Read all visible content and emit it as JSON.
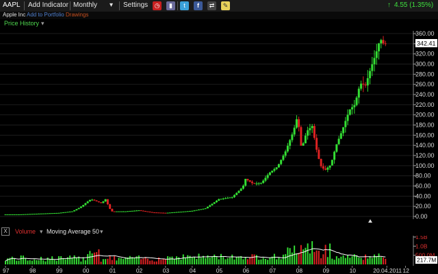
{
  "toolbar": {
    "symbol": "AAPL",
    "add_indicator": "Add Indicator",
    "interval": "Monthly",
    "interval_arrow": "▾",
    "settings": "Settings",
    "change": "4.55 (1.35%)",
    "change_arrow": "↑",
    "icons": [
      "alarm-clock-icon",
      "bookmark-icon",
      "twitter-icon",
      "facebook-icon",
      "compare-icon",
      "note-icon"
    ]
  },
  "subbar": {
    "company": "Apple Inc",
    "add_to_portfolio": "Add to Portfolio",
    "drawings": "Drawings"
  },
  "price_panel": {
    "title": "Price History",
    "title_arrow": "▾",
    "last_price": "342.41"
  },
  "volume_panel": {
    "close_label": "X",
    "title": "Volume",
    "title_arrow": "▾",
    "ma_label": "Moving Average 50",
    "ma_arrow": "▾",
    "last_volume": "217.7M"
  },
  "colors": {
    "up": "#33dd33",
    "down": "#dd2222",
    "ma": "#ffffff",
    "up_text": "#33dd33",
    "down_text": "#dd3333"
  },
  "chart_data": [
    {
      "type": "candlestick",
      "title": "Price History",
      "ylim": [
        0,
        360
      ],
      "y_ticks": [
        "360.00",
        "340.00",
        "320.00",
        "300.00",
        "280.00",
        "260.00",
        "240.00",
        "220.00",
        "200.00",
        "180.00",
        "160.00",
        "140.00",
        "120.00",
        "100.00",
        "80.00",
        "60.00",
        "40.00",
        "20.00",
        "0.00"
      ],
      "x_ticks": [
        "97",
        "98",
        "99",
        "00",
        "01",
        "02",
        "03",
        "04",
        "05",
        "06",
        "07",
        "08",
        "09",
        "10",
        "20.04.2011",
        "12"
      ],
      "x_range": [
        1997.0,
        2012.5
      ],
      "last_value": 342.41,
      "series": [
        {
          "t": 1997.0,
          "c": 4
        },
        {
          "t": 1997.5,
          "c": 4
        },
        {
          "t": 1998.0,
          "c": 5
        },
        {
          "t": 1998.5,
          "c": 6
        },
        {
          "t": 1999.0,
          "c": 7
        },
        {
          "t": 1999.5,
          "c": 10
        },
        {
          "t": 1999.8,
          "c": 18
        },
        {
          "t": 2000.0,
          "c": 26
        },
        {
          "t": 2000.2,
          "c": 34
        },
        {
          "t": 2000.4,
          "c": 30
        },
        {
          "t": 2000.6,
          "c": 26
        },
        {
          "t": 2000.75,
          "c": 34
        },
        {
          "t": 2000.9,
          "c": 16
        },
        {
          "t": 2001.0,
          "c": 10
        },
        {
          "t": 2001.5,
          "c": 10
        },
        {
          "t": 2002.0,
          "c": 12
        },
        {
          "t": 2002.5,
          "c": 8
        },
        {
          "t": 2003.0,
          "c": 7
        },
        {
          "t": 2003.5,
          "c": 9
        },
        {
          "t": 2004.0,
          "c": 11
        },
        {
          "t": 2004.5,
          "c": 16
        },
        {
          "t": 2005.0,
          "c": 34
        },
        {
          "t": 2005.5,
          "c": 38
        },
        {
          "t": 2005.9,
          "c": 58
        },
        {
          "t": 2006.0,
          "c": 74
        },
        {
          "t": 2006.3,
          "c": 64
        },
        {
          "t": 2006.6,
          "c": 66
        },
        {
          "t": 2006.9,
          "c": 86
        },
        {
          "t": 2007.2,
          "c": 98
        },
        {
          "t": 2007.5,
          "c": 128
        },
        {
          "t": 2007.8,
          "c": 168
        },
        {
          "t": 2007.95,
          "c": 198
        },
        {
          "t": 2008.1,
          "c": 132
        },
        {
          "t": 2008.3,
          "c": 168
        },
        {
          "t": 2008.5,
          "c": 178
        },
        {
          "t": 2008.7,
          "c": 122
        },
        {
          "t": 2008.85,
          "c": 96
        },
        {
          "t": 2009.0,
          "c": 92
        },
        {
          "t": 2009.2,
          "c": 102
        },
        {
          "t": 2009.4,
          "c": 140
        },
        {
          "t": 2009.6,
          "c": 166
        },
        {
          "t": 2009.9,
          "c": 210
        },
        {
          "t": 2010.1,
          "c": 220
        },
        {
          "t": 2010.3,
          "c": 262
        },
        {
          "t": 2010.5,
          "c": 258
        },
        {
          "t": 2010.7,
          "c": 292
        },
        {
          "t": 2010.9,
          "c": 322
        },
        {
          "t": 2011.05,
          "c": 350
        },
        {
          "t": 2011.2,
          "c": 338
        },
        {
          "t": 2011.3,
          "c": 342.41
        }
      ]
    },
    {
      "type": "bar",
      "title": "Volume",
      "y_ticks": [
        "1.5B",
        "1.0B",
        "500.0M"
      ],
      "ylim": [
        0,
        1.5
      ],
      "moving_average": "Moving Average 50",
      "last_value": "217.7M"
    }
  ]
}
